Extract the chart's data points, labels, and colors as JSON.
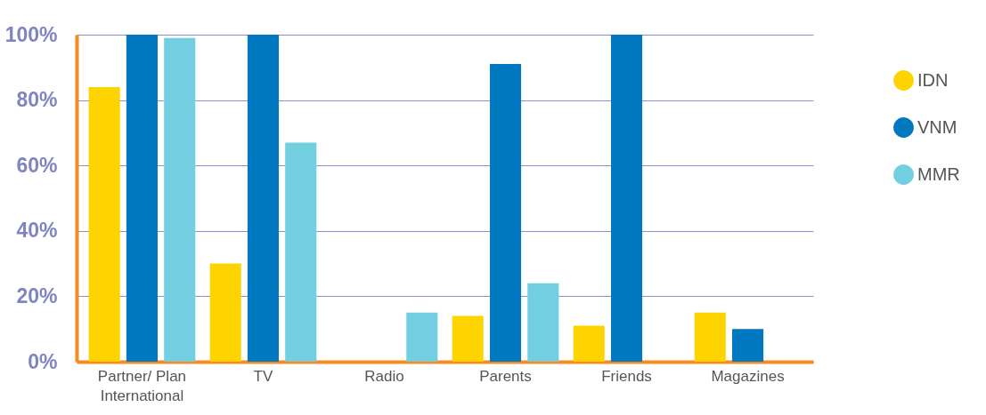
{
  "chart_data": {
    "type": "bar",
    "categories": [
      "Partner/ Plan International",
      "TV",
      "Radio",
      "Parents",
      "Friends",
      "Magazines"
    ],
    "series": [
      {
        "name": "IDN",
        "color": "#fdd400",
        "values": [
          84,
          30,
          null,
          14,
          11,
          15
        ]
      },
      {
        "name": "VNM",
        "color": "#0079c1",
        "values": [
          100,
          100,
          null,
          91,
          100,
          10
        ]
      },
      {
        "name": "MMR",
        "color": "#72cfe0",
        "values": [
          99,
          67,
          15,
          24,
          null,
          null
        ]
      }
    ],
    "ylim": [
      0,
      100
    ],
    "yticks": [
      {
        "value": 0,
        "label": "0%"
      },
      {
        "value": 20,
        "label": "20%"
      },
      {
        "value": 40,
        "label": "40%"
      },
      {
        "value": 60,
        "label": "60%"
      },
      {
        "value": 80,
        "label": "80%"
      },
      {
        "value": 100,
        "label": "100%"
      }
    ],
    "grid": "y",
    "legend": "right"
  }
}
